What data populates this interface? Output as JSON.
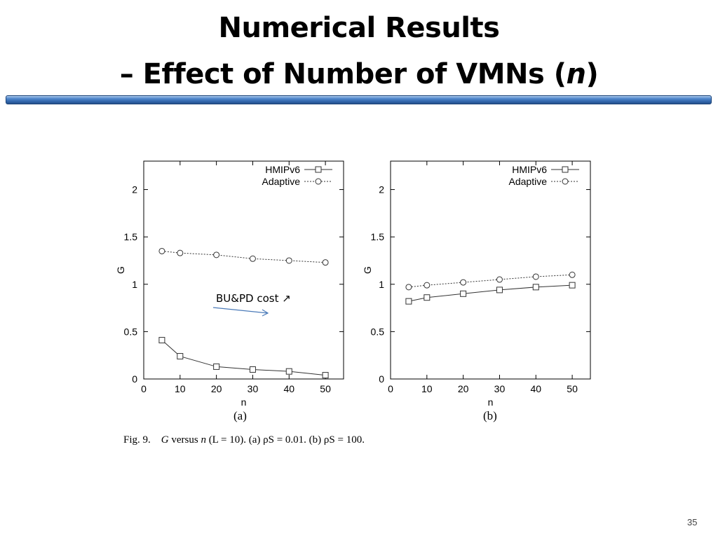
{
  "slide": {
    "title_line1": "Numerical Results",
    "title_line2_prefix": "– Effect of Number of VMNs (",
    "title_line2_var": "n",
    "title_line2_suffix": ")",
    "page_number": "35",
    "annotation": "BU&PD cost ↗",
    "caption_fig": "Fig. 9.",
    "caption_G": "G",
    "caption_versus": " versus ",
    "caption_n": "n",
    "caption_rest": " (L = 10). (a) ρS = 0.01. (b) ρS = 100.",
    "accent_color": "#2f63a8",
    "annotation_arrow_color": "#4a7ab8"
  },
  "chart_data": [
    {
      "type": "line",
      "subtitle": "(a)",
      "xlabel": "n",
      "ylabel": "G",
      "xlim": [
        0,
        55
      ],
      "ylim": [
        0,
        2.3
      ],
      "xticks": [
        0,
        10,
        20,
        30,
        40,
        50
      ],
      "yticks": [
        0,
        0.5,
        1,
        1.5,
        2
      ],
      "ytick_labels": [
        "0",
        "0.5",
        "1",
        "1.5",
        "2"
      ],
      "legend_position": "top-right",
      "x": [
        5,
        10,
        20,
        30,
        40,
        50
      ],
      "series": [
        {
          "name": "HMIPv6",
          "marker": "square",
          "line": "solid",
          "values": [
            0.41,
            0.24,
            0.13,
            0.1,
            0.08,
            0.04
          ]
        },
        {
          "name": "Adaptive",
          "marker": "circle",
          "line": "dotted",
          "values": [
            1.35,
            1.33,
            1.31,
            1.27,
            1.25,
            1.23
          ]
        }
      ]
    },
    {
      "type": "line",
      "subtitle": "(b)",
      "xlabel": "n",
      "ylabel": "G",
      "xlim": [
        0,
        55
      ],
      "ylim": [
        0,
        2.3
      ],
      "xticks": [
        0,
        10,
        20,
        30,
        40,
        50
      ],
      "yticks": [
        0,
        0.5,
        1,
        1.5,
        2
      ],
      "ytick_labels": [
        "0",
        "0.5",
        "1",
        "1.5",
        "2"
      ],
      "legend_position": "top-right",
      "x": [
        5,
        10,
        20,
        30,
        40,
        50
      ],
      "series": [
        {
          "name": "HMIPv6",
          "marker": "square",
          "line": "solid",
          "values": [
            0.82,
            0.86,
            0.9,
            0.94,
            0.97,
            0.99
          ]
        },
        {
          "name": "Adaptive",
          "marker": "circle",
          "line": "dotted",
          "values": [
            0.97,
            0.99,
            1.02,
            1.05,
            1.08,
            1.1
          ]
        }
      ]
    }
  ]
}
